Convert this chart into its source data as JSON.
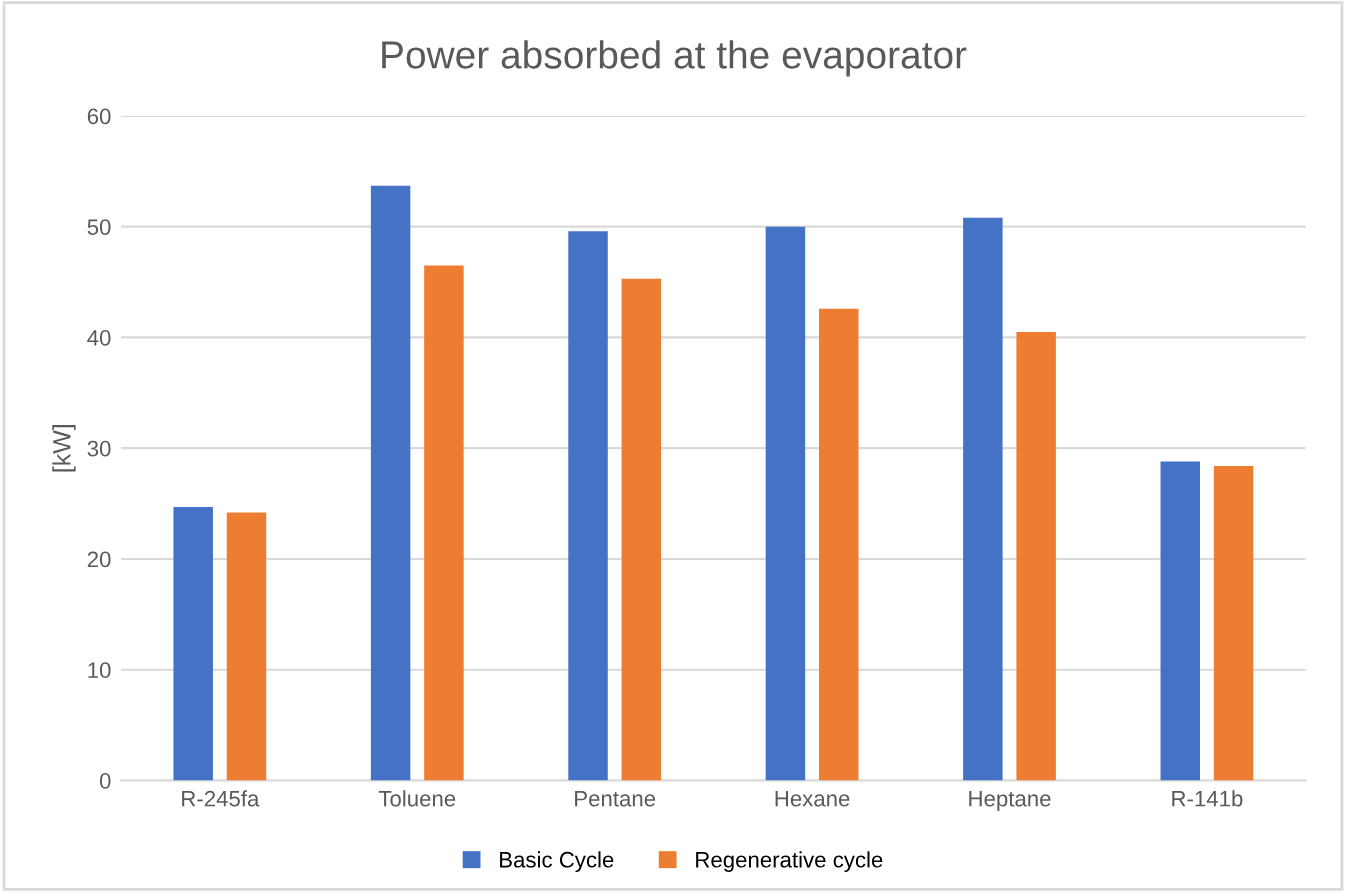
{
  "chart_data": {
    "type": "bar",
    "title": "Power absorbed at the evaporator",
    "ylabel": "[kW]",
    "categories": [
      "R-245fa",
      "Toluene",
      "Pentane",
      "Hexane",
      "Heptane",
      "R-141b"
    ],
    "series": [
      {
        "name": "Basic Cycle",
        "color": "#4472c4",
        "values": [
          24.7,
          53.7,
          49.6,
          50.0,
          50.8,
          28.8
        ]
      },
      {
        "name": "Regenerative cycle",
        "color": "#ed7d31",
        "values": [
          24.2,
          46.5,
          45.3,
          42.6,
          40.5,
          28.4
        ]
      }
    ],
    "ylim": [
      0,
      60
    ],
    "yticks": [
      0,
      10,
      20,
      30,
      40,
      50,
      60
    ],
    "grid": "y",
    "legend": "bottom"
  }
}
